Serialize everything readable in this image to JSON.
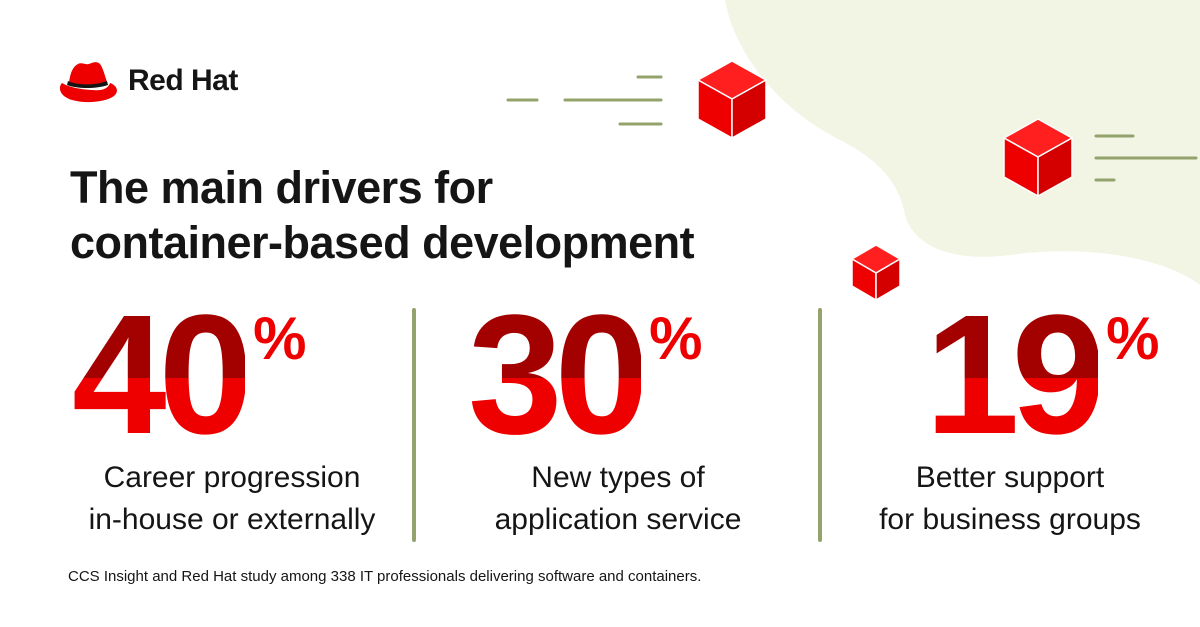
{
  "brand": {
    "name": "Red Hat",
    "logo_icon": "red-hat-fedora-icon",
    "color": "#ee0000"
  },
  "headline": {
    "line1": "The main drivers for",
    "line2": "container-based development"
  },
  "stats": [
    {
      "value": "40",
      "unit": "%",
      "label_line1": "Career progression",
      "label_line2": "in-house or externally"
    },
    {
      "value": "30",
      "unit": "%",
      "label_line1": "New types of",
      "label_line2": "application service"
    },
    {
      "value": "19",
      "unit": "%",
      "label_line1": "Better support",
      "label_line2": "for business groups"
    }
  ],
  "colors": {
    "dark_red": "#a30000",
    "red": "#ee0000",
    "olive": "#93a36b",
    "blob": "#f2f5e4",
    "text": "#151515"
  },
  "footnote": "CCS Insight and Red Hat study among 338 IT professionals delivering software and containers."
}
